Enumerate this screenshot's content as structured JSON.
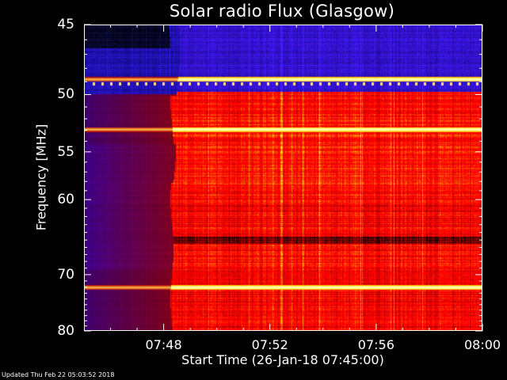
{
  "chart_data": {
    "type": "heatmap",
    "title": "Solar radio Flux (Glasgow)",
    "xlabel": "Start Time (26-Jan-18 07:45:00)",
    "ylabel": "Frequency [MHz]",
    "x_ticks": [
      "07:48",
      "07:52",
      "07:56",
      "08:00"
    ],
    "x_tick_minutes": [
      3,
      7,
      11,
      15
    ],
    "xlim_minutes": [
      0,
      15
    ],
    "y_ticks": [
      45,
      50,
      55,
      60,
      70,
      80
    ],
    "ylim": [
      45,
      80
    ],
    "yscale": "reciprocal",
    "colormap": [
      "#000010",
      "#10108a",
      "#3030f0",
      "#8a0000",
      "#c01010",
      "#f03010",
      "#ff8000",
      "#ffff40",
      "#ffffff"
    ],
    "onset_minute": 3.3,
    "bright_lines_mhz": [
      48.8,
      52.9,
      72.0
    ],
    "dark_gap_mhz": [
      64.5,
      65.5
    ]
  },
  "footer": "Updated Thu Feb 22 05:03:52 2018",
  "colors": {
    "background": "#000000",
    "text": "#ffffff"
  }
}
